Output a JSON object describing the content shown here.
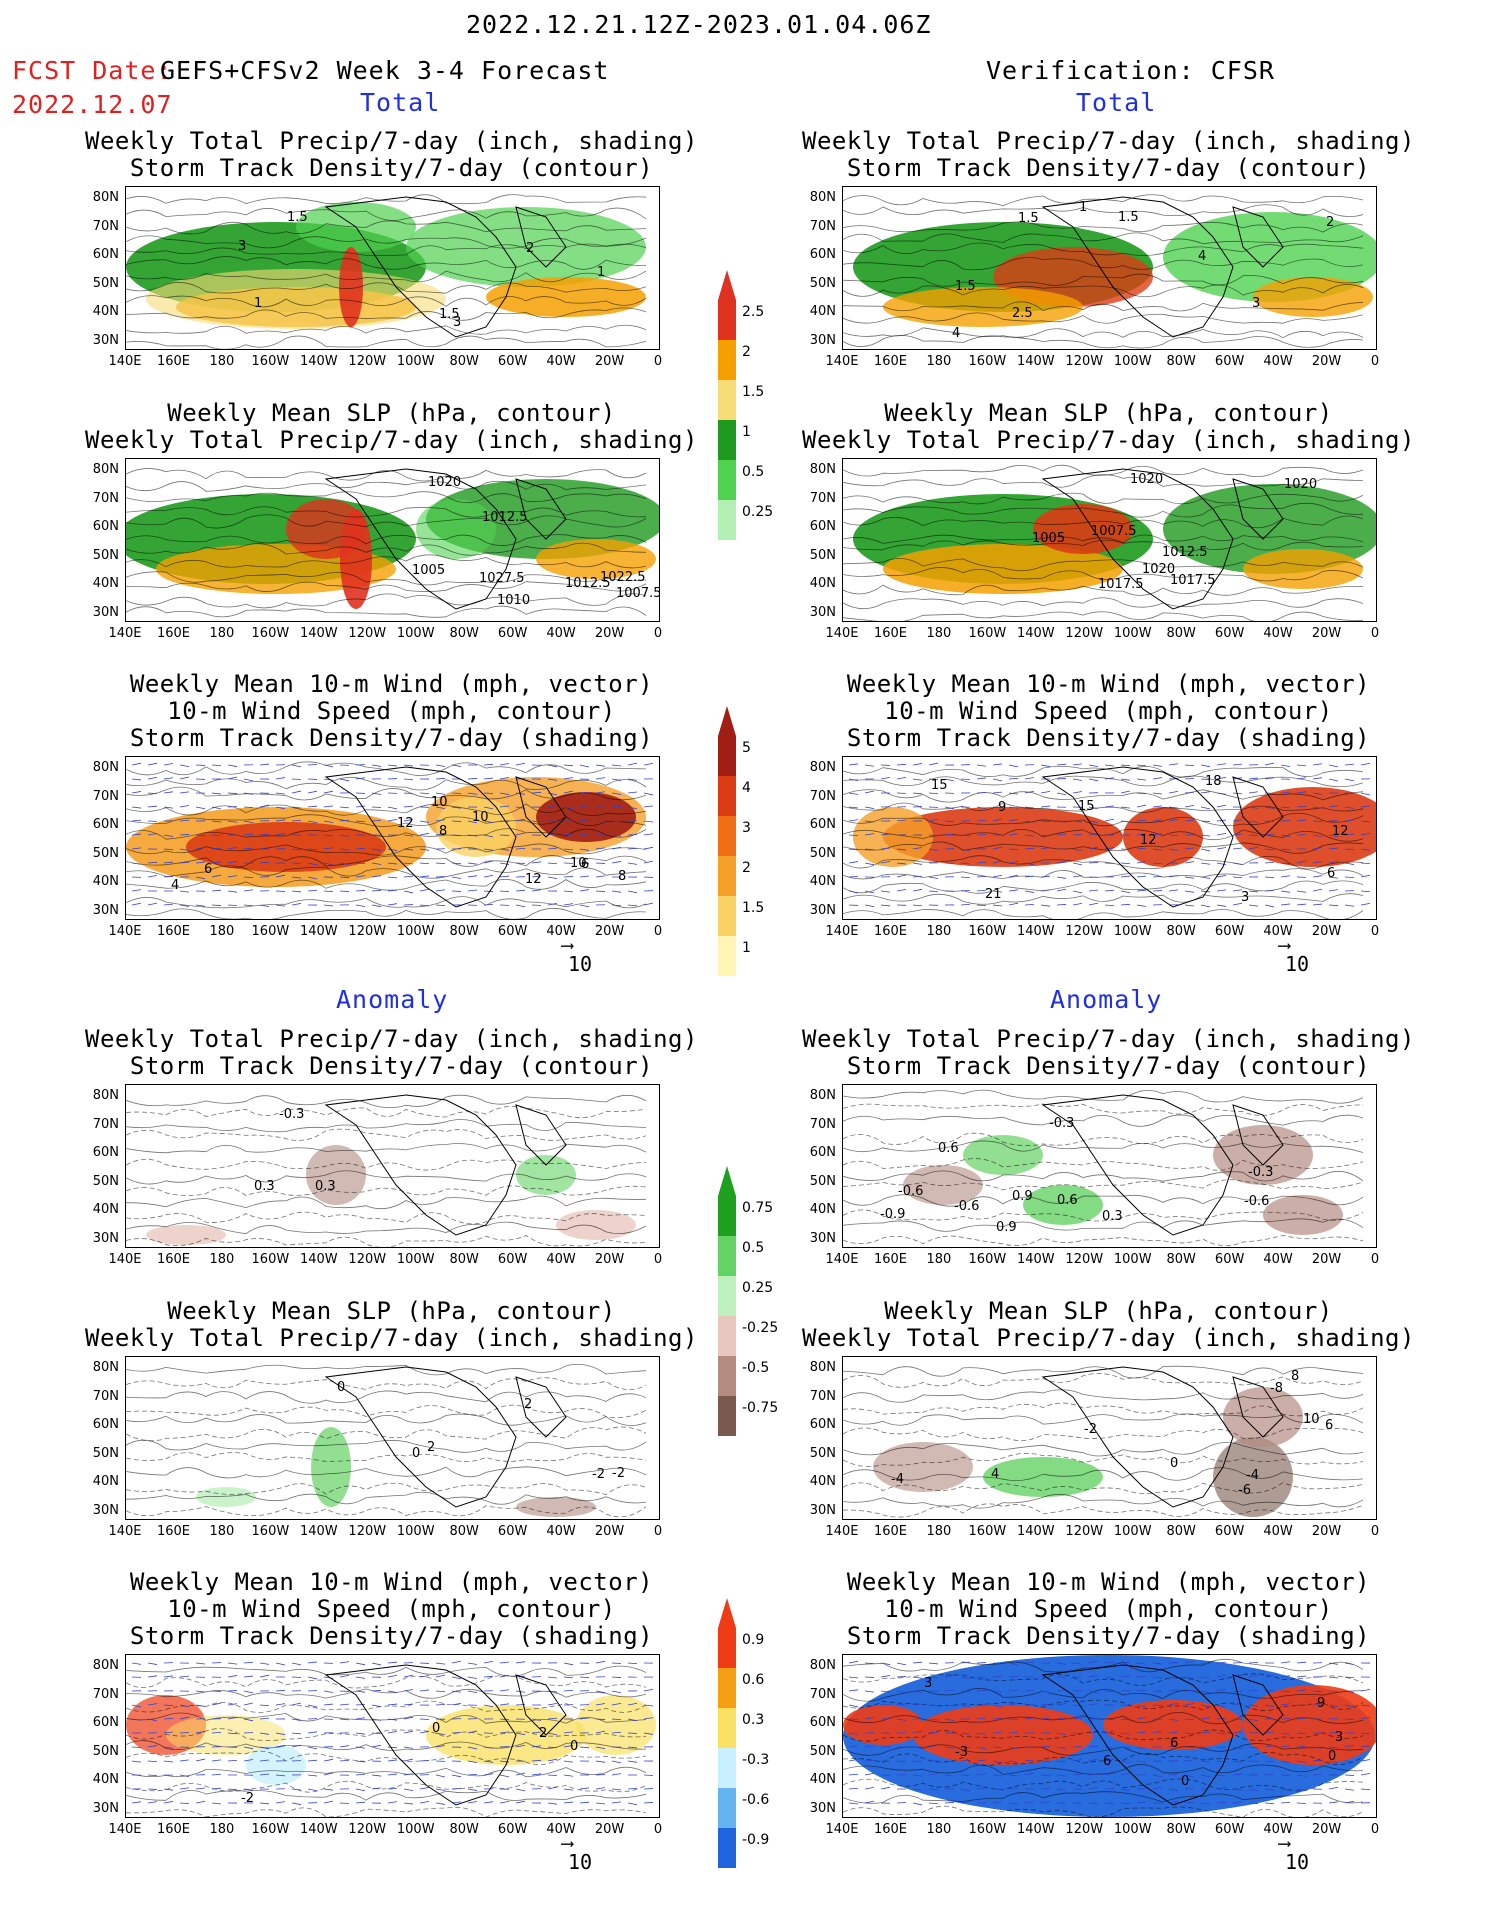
{
  "header": {
    "date_range": "2022.12.21.12Z-2023.01.04.06Z",
    "fcst_label": "FCST Date:",
    "fcst_model": "GEFS+CFSv2 Week 3-4 Forecast",
    "fcst_date": "2022.12.07",
    "verification": "Verification: CFSR"
  },
  "sections": {
    "total": "Total",
    "anomaly": "Anomaly"
  },
  "titles": {
    "precip_storm": [
      "Weekly Total Precip/7-day (inch, shading)",
      "Storm Track Density/7-day (contour)"
    ],
    "slp_precip": [
      "Weekly Mean SLP (hPa, contour)",
      "Weekly Total Precip/7-day (inch, shading)"
    ],
    "wind_storm": [
      "Weekly Mean 10-m Wind (mph, vector)",
      "10-m Wind Speed (mph, contour)",
      "Storm Track Density/7-day (shading)"
    ]
  },
  "axes": {
    "lon_labels": [
      "140E",
      "160E",
      "180",
      "160W",
      "140W",
      "120W",
      "100W",
      "80W",
      "60W",
      "40W",
      "20W",
      "0"
    ],
    "lat_labels": [
      "80N",
      "70N",
      "60N",
      "50N",
      "40N",
      "30N"
    ]
  },
  "vector_ref": "10",
  "colorbars": {
    "precip_total": {
      "labels": [
        "2.5",
        "2",
        "1.5",
        "1",
        "0.5",
        "0.25"
      ],
      "colors": [
        "#e0321e",
        "#f5a000",
        "#f8dc78",
        "#1e9a1e",
        "#50d250",
        "#b4f0b4"
      ]
    },
    "storm_total": {
      "labels": [
        "5",
        "4",
        "3",
        "2",
        "1.5",
        "1"
      ],
      "colors": [
        "#a01e14",
        "#dc3c14",
        "#f06e14",
        "#f5a028",
        "#fad264",
        "#fff5b4"
      ]
    },
    "precip_anom": {
      "labels": [
        "0.75",
        "0.5",
        "0.25",
        "-0.25",
        "-0.5",
        "-0.75"
      ],
      "colors": [
        "#1ea01e",
        "#64d264",
        "#bef0be",
        "#e8c8be",
        "#b48c82",
        "#7a5a4e"
      ]
    },
    "storm_anom": {
      "labels": [
        "0.9",
        "0.6",
        "0.3",
        "-0.3",
        "-0.6",
        "-0.9"
      ],
      "colors": [
        "#f03c14",
        "#f5a014",
        "#fae164",
        "#c8f0ff",
        "#64b4f0",
        "#1e64dc"
      ]
    }
  },
  "panel_labels": {
    "fc_precip_storm": [
      "3",
      "1.5",
      "1",
      "3",
      "2",
      "1.5",
      "1"
    ],
    "vf_precip_storm": [
      "1.5",
      "3",
      "2.5",
      "4",
      "1",
      "1.5",
      "4",
      "1.5",
      "2"
    ],
    "fc_slp_precip": [
      "1012.5",
      "1022.5",
      "1005",
      "1020",
      "1027.5",
      "1012.5",
      "1010",
      "1007.5"
    ],
    "vf_slp_precip": [
      "1020",
      "1007.5",
      "1017.5",
      "1020",
      "1005",
      "1012.5",
      "1017.5",
      "1020"
    ],
    "fc_wind": [
      "6",
      "8",
      "10",
      "8",
      "10",
      "12",
      "12",
      "10",
      "6",
      "4"
    ],
    "vf_wind": [
      "3",
      "15",
      "6",
      "12",
      "21",
      "18",
      "9",
      "12",
      "15"
    ],
    "fc_precip_storm_anom": [
      "0.3",
      "-0.3",
      "0.3"
    ],
    "vf_precip_storm_anom": [
      "-0.9",
      "-0.6",
      "0.9",
      "-0.3",
      "0.6",
      "-0.3",
      "-0.6",
      "0.9",
      "-0.6",
      "0.6",
      "0.3"
    ],
    "fc_slp_anom": [
      "2",
      "-2",
      "0",
      "2",
      "0",
      "-2"
    ],
    "vf_slp_anom": [
      "4",
      "-2",
      "0",
      "-6",
      "-4",
      "8",
      "-8",
      "6",
      "10",
      "-4"
    ],
    "fc_wind_anom": [
      "2",
      "0",
      "0",
      "-2"
    ],
    "vf_wind_anom": [
      "6",
      "3",
      "0",
      "-3",
      "9",
      "3",
      "6",
      "0"
    ]
  }
}
